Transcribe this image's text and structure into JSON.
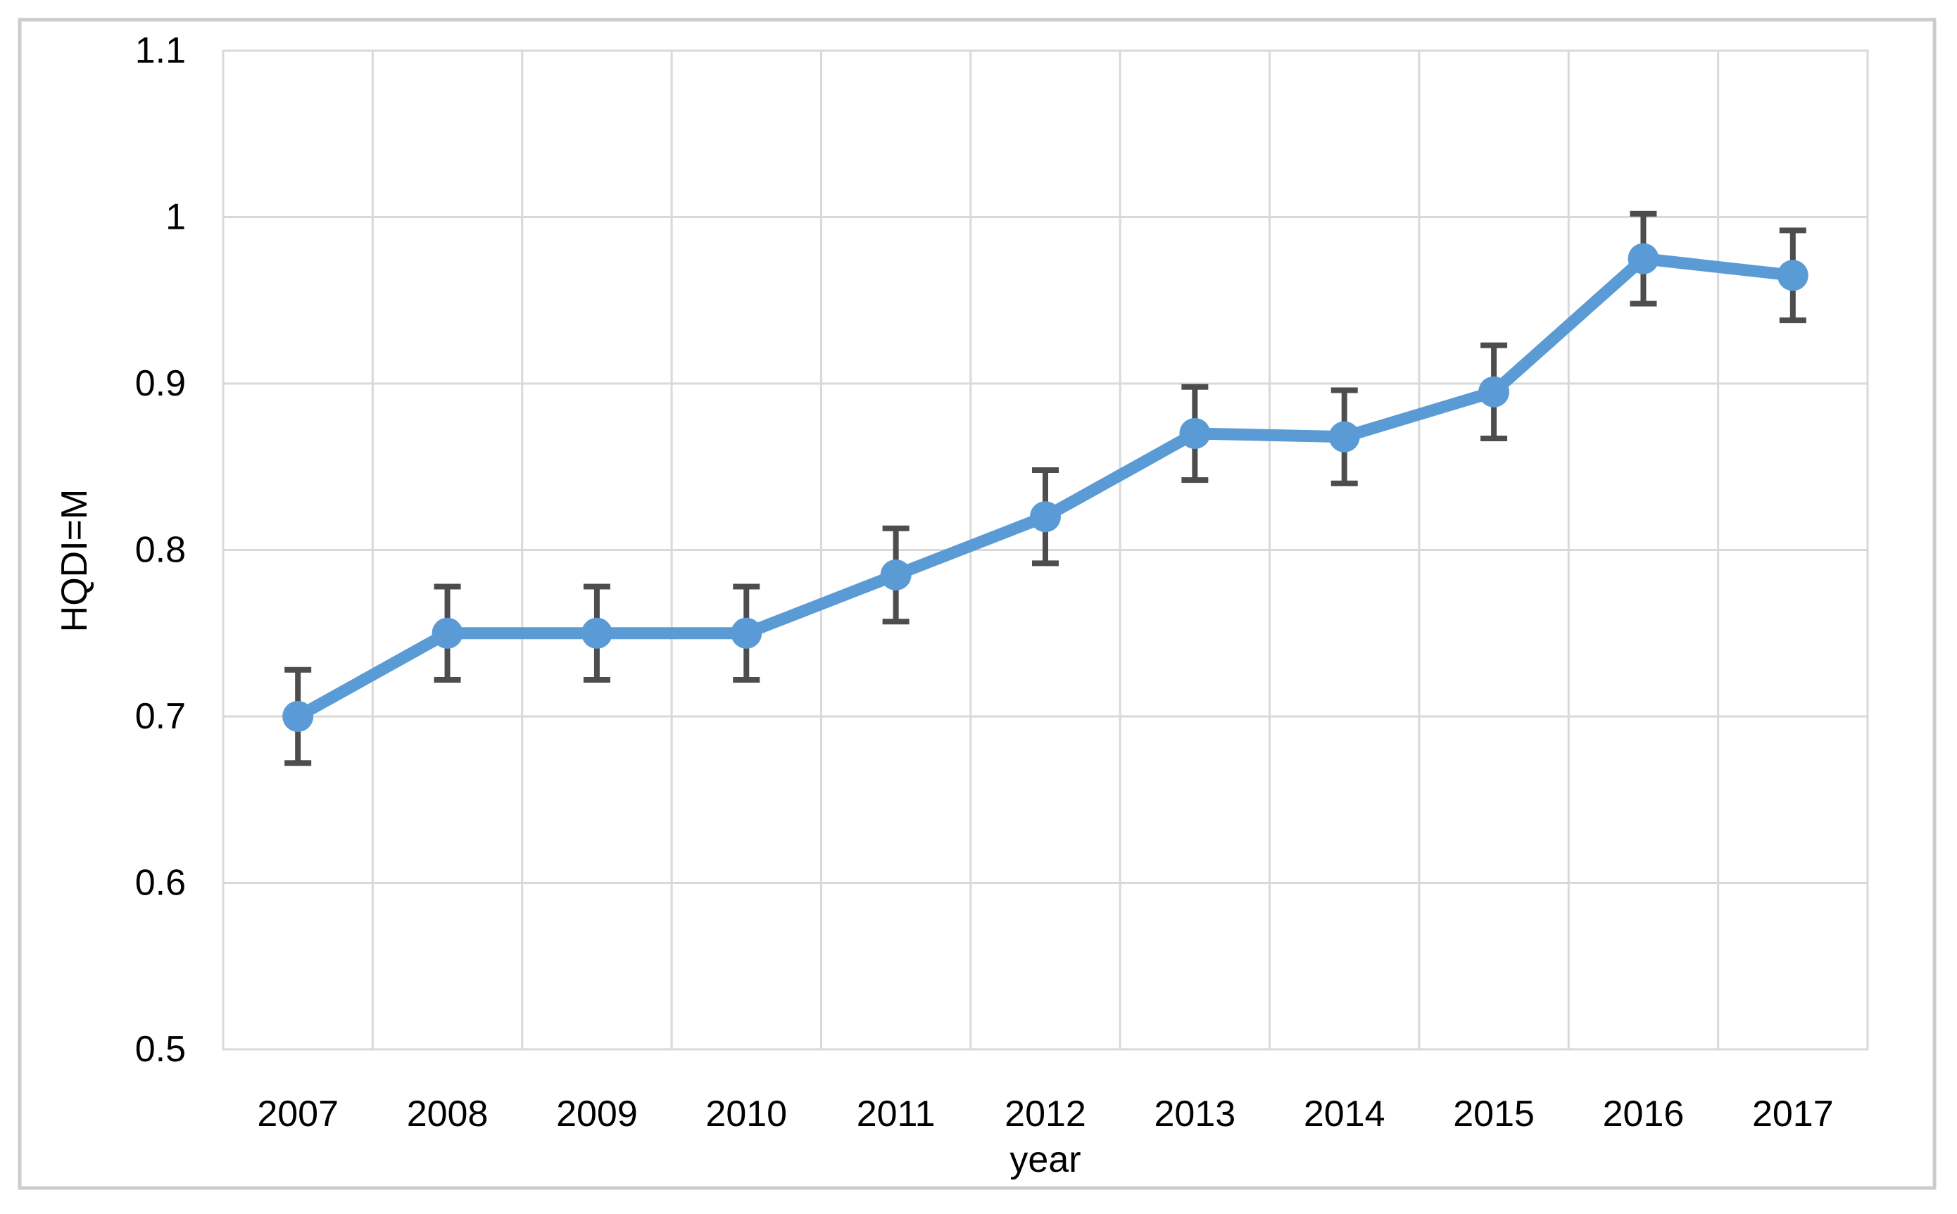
{
  "chart_data": {
    "type": "line",
    "title": "",
    "xlabel": "year",
    "ylabel": "HQDI=M",
    "categories": [
      "2007",
      "2008",
      "2009",
      "2010",
      "2011",
      "2012",
      "2013",
      "2014",
      "2015",
      "2016",
      "2017"
    ],
    "series": [
      {
        "name": "HQDI=M",
        "values": [
          0.7,
          0.75,
          0.75,
          0.75,
          0.785,
          0.82,
          0.87,
          0.868,
          0.895,
          0.975,
          0.965
        ],
        "error_plus": [
          0.028,
          0.028,
          0.028,
          0.028,
          0.028,
          0.028,
          0.028,
          0.028,
          0.028,
          0.027,
          0.027
        ],
        "error_minus": [
          0.028,
          0.028,
          0.028,
          0.028,
          0.028,
          0.028,
          0.028,
          0.028,
          0.028,
          0.027,
          0.027
        ]
      }
    ],
    "ylim": [
      0.5,
      1.1
    ],
    "ytick_values": [
      1.1,
      1.0,
      0.9,
      0.8,
      0.7,
      0.6,
      0.5
    ],
    "ytick_labels": [
      "1.1",
      "1",
      "0.9",
      "0.8",
      "0.7",
      "0.6",
      "0.5"
    ],
    "grid": true,
    "legend": "none",
    "colors": {
      "line": "#5B9BD5",
      "marker": "#5B9BD5",
      "error_bar": "#4D4D4D",
      "gridline": "#D9D9D9",
      "plot_border": "#D9D9D9",
      "figure_border": "#CCCCCC",
      "text": "#000000",
      "background": "#FFFFFF"
    }
  }
}
